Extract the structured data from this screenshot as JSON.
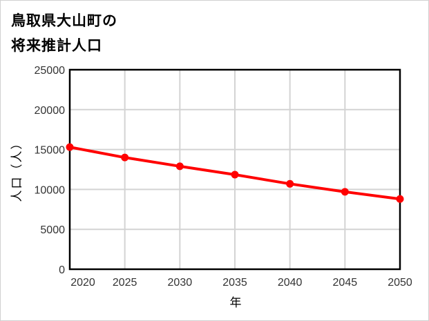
{
  "title_lines": [
    "鳥取県大山町の",
    "将来推計人口"
  ],
  "chart_data": {
    "type": "line",
    "title": "鳥取県大山町の将来推計人口",
    "xlabel": "年",
    "ylabel": "人口（人）",
    "x": [
      2020,
      2025,
      2030,
      2035,
      2040,
      2045,
      2050
    ],
    "series": [
      {
        "name": "人口",
        "color": "#ff0000",
        "values": [
          15300,
          14000,
          12900,
          11850,
          10700,
          9700,
          8800
        ]
      }
    ],
    "ylim": [
      0,
      25000
    ],
    "xlim": [
      2020,
      2050
    ],
    "yticks": [
      0,
      5000,
      10000,
      15000,
      20000,
      25000
    ],
    "xticks": [
      2020,
      2025,
      2030,
      2035,
      2040,
      2045,
      2050
    ],
    "grid": true,
    "legend": "none"
  },
  "colors": {
    "line": "#ff0000",
    "grid": "#d3d3d3",
    "axis": "#000000"
  }
}
